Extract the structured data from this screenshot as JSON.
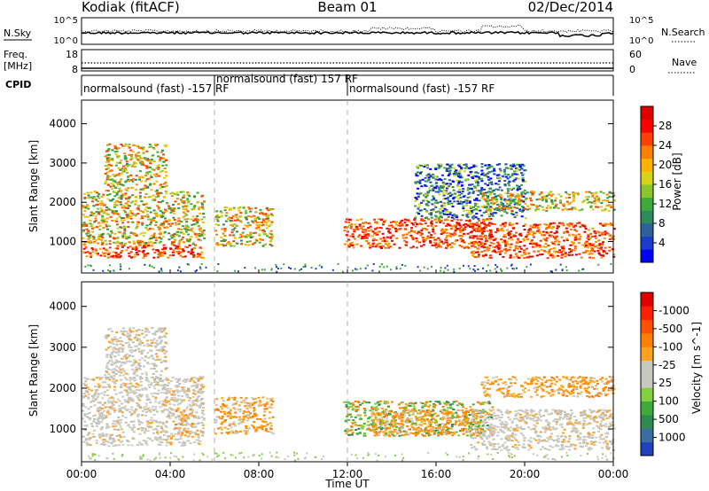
{
  "header": {
    "station": "Kodiak (fitACF)",
    "beam": "Beam 01",
    "date": "02/Dec/2014"
  },
  "top_panels": {
    "nsky_label": "N.Sky",
    "nsky_ticks": [
      "10^5",
      "10^0"
    ],
    "nsearch_label": "N.Search",
    "nsearch_ticks": [
      "10^5",
      "10^0"
    ],
    "freq_label_1": "Freq.",
    "freq_label_2": "[MHz]",
    "freq_ticks": [
      "18",
      "8"
    ],
    "nave_label": "Nave",
    "nave_ticks": [
      "60",
      "0"
    ],
    "cpid_label": "CPID",
    "cpid_segments": [
      {
        "text": "normalsound (fast) -157 RF",
        "start_hour": 0,
        "end_hour": 6,
        "row": 2
      },
      {
        "text": "normalsound (fast) 157 RF",
        "start_hour": 6,
        "end_hour": 12,
        "row": 1
      },
      {
        "text": "normalsound (fast) -157 RF",
        "start_hour": 12,
        "end_hour": 24,
        "row": 2
      }
    ]
  },
  "x_axis": {
    "label": "Time UT",
    "ticks": [
      "00:00",
      "04:00",
      "08:00",
      "12:00",
      "16:00",
      "20:00",
      "00:00"
    ],
    "tick_hours": [
      0,
      4,
      8,
      12,
      16,
      20,
      24
    ]
  },
  "chart_data": [
    {
      "type": "heatmap",
      "name": "power-panel",
      "ylabel": "Slant Range [km]",
      "y_ticks": [
        1000,
        2000,
        3000,
        4000
      ],
      "ylim": [
        200,
        4600
      ],
      "xlim_hours": [
        0,
        24
      ],
      "colorbar": {
        "title": "Power [dB]",
        "tick_labels": [
          "4",
          "8",
          "12",
          "16",
          "20",
          "24",
          "28"
        ],
        "colors": [
          "#0000ff",
          "#1a3ccc",
          "#2e5f9f",
          "#2f8a5a",
          "#3cab3c",
          "#8cc62a",
          "#d8d21a",
          "#ffb000",
          "#ff8000",
          "#ff4000",
          "#ff0000",
          "#e00000"
        ]
      },
      "regions": [
        {
          "t0": 0.0,
          "t1": 5.5,
          "r0": 600,
          "r1": 950,
          "cls": "high"
        },
        {
          "t0": 0.0,
          "t1": 5.5,
          "r0": 950,
          "r1": 2300,
          "cls": "mid"
        },
        {
          "t0": 1.0,
          "t1": 3.8,
          "r0": 2300,
          "r1": 3500,
          "cls": "mid"
        },
        {
          "t0": 6.0,
          "t1": 8.6,
          "r0": 900,
          "r1": 1900,
          "cls": "mid"
        },
        {
          "t0": 11.8,
          "t1": 18.5,
          "r0": 850,
          "r1": 1600,
          "cls": "high"
        },
        {
          "t0": 15.0,
          "t1": 20.0,
          "r0": 1600,
          "r1": 3000,
          "cls": "low"
        },
        {
          "t0": 17.5,
          "t1": 24.0,
          "r0": 600,
          "r1": 1500,
          "cls": "high"
        },
        {
          "t0": 18.0,
          "t1": 24.0,
          "r0": 1800,
          "r1": 2300,
          "cls": "mid"
        }
      ]
    },
    {
      "type": "heatmap",
      "name": "velocity-panel",
      "ylabel": "Slant Range [km]",
      "y_ticks": [
        1000,
        2000,
        3000,
        4000
      ],
      "ylim": [
        200,
        4600
      ],
      "xlim_hours": [
        0,
        24
      ],
      "colorbar": {
        "title": "Velocity [m s^-1]",
        "tick_labels": [
          "1000",
          "500",
          "100",
          "25",
          "-25",
          "-100",
          "-500",
          "-1000"
        ],
        "colors": [
          "#2040c0",
          "#3a6da0",
          "#2e8a50",
          "#3cab3c",
          "#80d040",
          "#c8c8c0",
          "#c8c8c0",
          "#ffa020",
          "#ff8000",
          "#ff5000",
          "#ff2000",
          "#e00000"
        ]
      },
      "regions": [
        {
          "t0": 0.0,
          "t1": 5.5,
          "r0": 600,
          "r1": 2300,
          "cls": "gray"
        },
        {
          "t0": 1.0,
          "t1": 3.8,
          "r0": 2300,
          "r1": 3500,
          "cls": "gray"
        },
        {
          "t0": 4.2,
          "t1": 5.0,
          "r0": 900,
          "r1": 1500,
          "cls": "orange"
        },
        {
          "t0": 6.0,
          "t1": 8.6,
          "r0": 900,
          "r1": 1800,
          "cls": "orange"
        },
        {
          "t0": 11.8,
          "t1": 18.5,
          "r0": 850,
          "r1": 1700,
          "cls": "green"
        },
        {
          "t0": 13.0,
          "t1": 18.0,
          "r0": 850,
          "r1": 1500,
          "cls": "orange"
        },
        {
          "t0": 17.5,
          "t1": 24.0,
          "r0": 500,
          "r1": 1500,
          "cls": "gray"
        },
        {
          "t0": 18.0,
          "t1": 24.0,
          "r0": 1800,
          "r1": 2300,
          "cls": "orange"
        }
      ]
    }
  ]
}
